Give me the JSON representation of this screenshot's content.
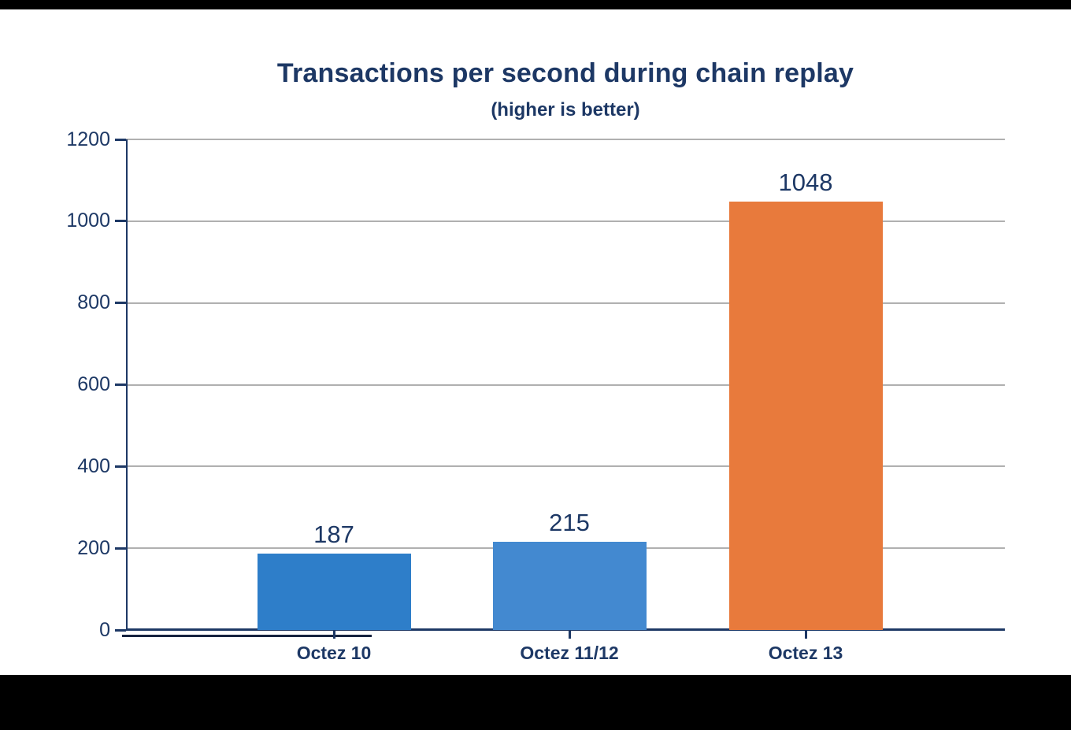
{
  "title": "Transactions per second during chain replay",
  "subtitle": "(higher is better)",
  "chart_data": {
    "type": "bar",
    "title": "Transactions per second during chain replay",
    "subtitle": "(higher is better)",
    "categories": [
      "Octez 10",
      "Octez 11/12",
      "Octez 13"
    ],
    "values": [
      187,
      215,
      1048
    ],
    "value_labels": [
      "187",
      "215",
      "1048"
    ],
    "bar_colors": [
      "#2e7ec9",
      "#4389d0",
      "#e87a3c"
    ],
    "xlabel": "",
    "ylabel": "",
    "ylim": [
      0,
      1200
    ],
    "yticks": [
      "0",
      "200",
      "400",
      "600",
      "800",
      "1000",
      "1200"
    ],
    "grid": "horizontal gray lines at each y tick",
    "legend": "none",
    "text_color": "#1d3865",
    "gridline_color": "#b0b0b0",
    "plot_background": "#ffffff",
    "outer_background": "#000000"
  }
}
